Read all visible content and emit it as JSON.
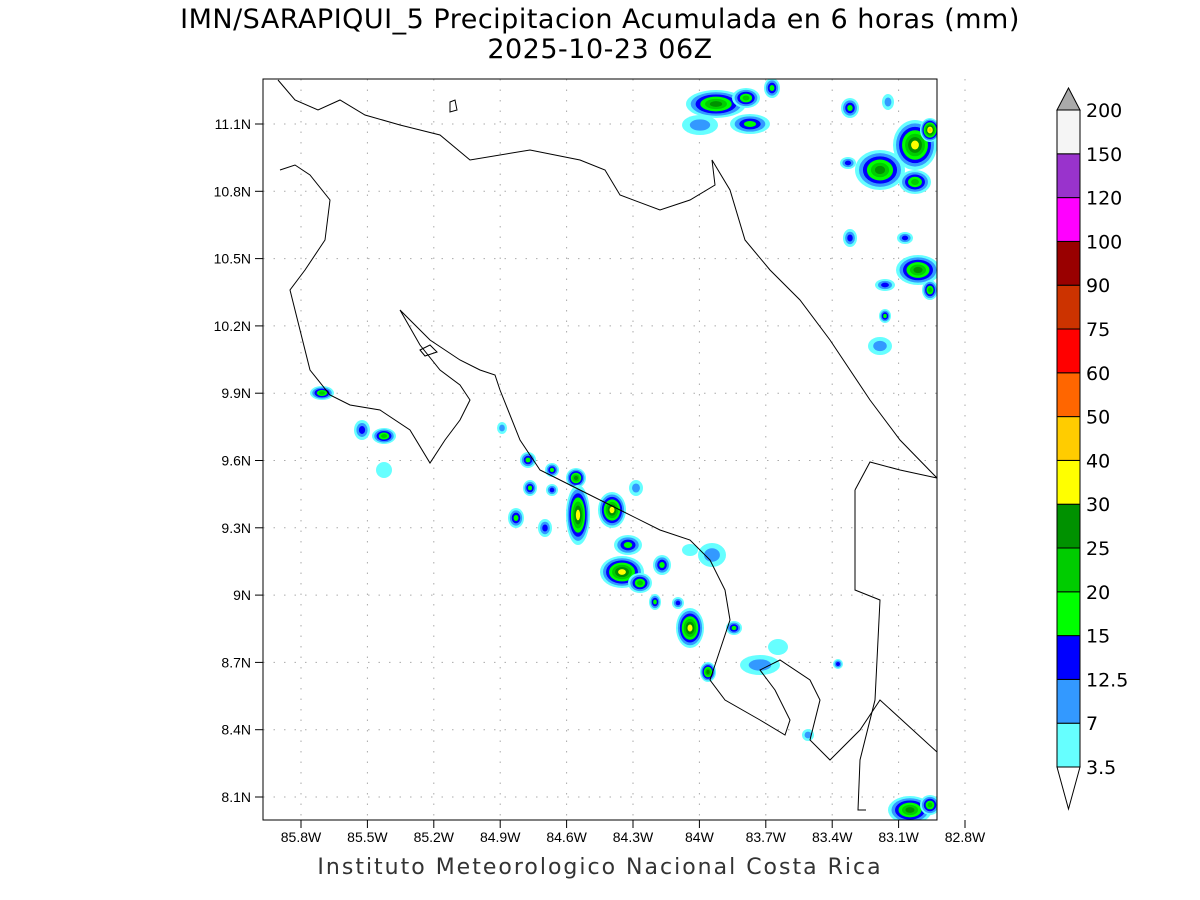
{
  "title": "IMN/SARAPIQUI_5 Precipitacion Acumulada en 6 horas (mm)",
  "subtitle": "2025-10-23 06Z",
  "footer": "Instituto Meteorologico Nacional Costa Rica",
  "map": {
    "lon_range": [
      -86.0,
      -82.45
    ],
    "lat_range": [
      8.0,
      11.3
    ],
    "lon_ticks": [
      "85.8W",
      "85.5W",
      "85.2W",
      "84.9W",
      "84.6W",
      "84.3W",
      "84W",
      "83.7W",
      "83.4W",
      "83.1W",
      "82.8W"
    ],
    "lon_values": [
      85.8,
      85.5,
      85.2,
      84.9,
      84.6,
      84.3,
      84.0,
      83.7,
      83.4,
      83.1,
      82.8
    ],
    "lat_ticks": [
      "11.1N",
      "10.8N",
      "10.5N",
      "10.2N",
      "9.9N",
      "9.6N",
      "9.3N",
      "9N",
      "8.7N",
      "8.4N",
      "8.1N"
    ],
    "lat_values": [
      11.1,
      10.8,
      10.5,
      10.2,
      9.9,
      9.6,
      9.3,
      9.0,
      8.7,
      8.4,
      8.1
    ]
  },
  "colorbar": {
    "labels": [
      "3.5",
      "7",
      "12.5",
      "15",
      "20",
      "25",
      "30",
      "40",
      "50",
      "60",
      "75",
      "90",
      "100",
      "120",
      "150",
      "200"
    ],
    "colors": [
      "#66ffff",
      "#3399ff",
      "#0000ff",
      "#00ff00",
      "#00cc00",
      "#009100",
      "#ffff00",
      "#ffcc00",
      "#ff6600",
      "#ff0000",
      "#cc3300",
      "#990000",
      "#ff00ff",
      "#9933cc",
      "#f5f5f5"
    ],
    "under_color": "#ffffff",
    "over_color": "#aaaaaa"
  }
}
